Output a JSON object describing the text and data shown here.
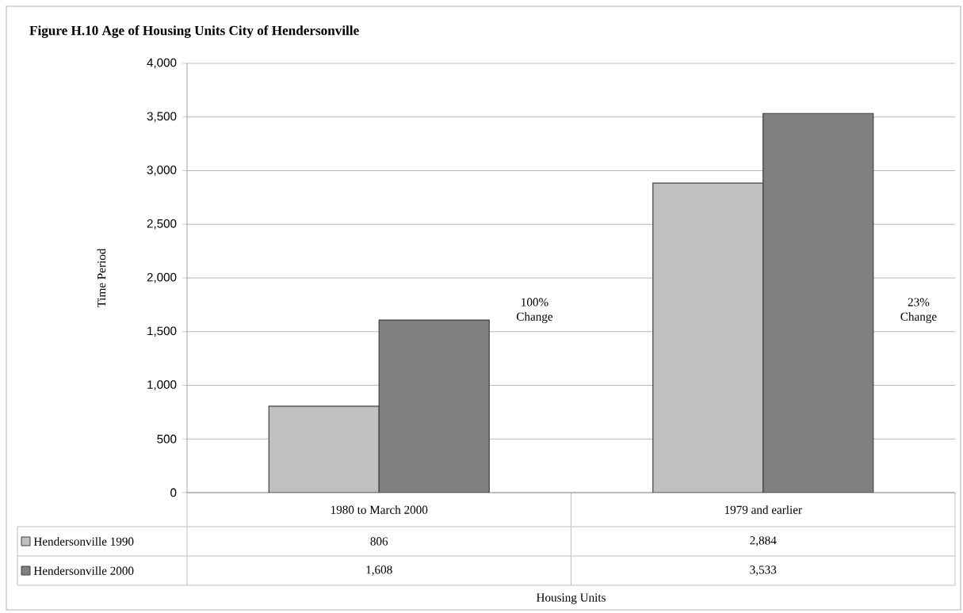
{
  "chart_data": {
    "type": "bar",
    "title": "Figure H.10 Age of Housing Units City of Hendersonville",
    "ylabel": "Time Period",
    "categories": [
      "1980 to March 2000",
      "1979 and earlier"
    ],
    "series": [
      {
        "name": "Hendersonville 1990",
        "color": "#c0c0c0",
        "values": [
          806,
          2884
        ],
        "value_labels": [
          "806",
          "2,884"
        ]
      },
      {
        "name": "Hendersonville 2000",
        "color": "#808080",
        "values": [
          1608,
          3533
        ],
        "value_labels": [
          "1,608",
          "3,533"
        ]
      }
    ],
    "annotations": [
      "100% Change",
      "23% Change",
      "Housing Units"
    ],
    "ylim": [
      0,
      4000
    ],
    "yticks": [
      {
        "value": 0,
        "label": "0"
      },
      {
        "value": 500,
        "label": "500"
      },
      {
        "value": 1000,
        "label": "1,000"
      },
      {
        "value": 1500,
        "label": "1,500"
      },
      {
        "value": 2000,
        "label": "2,000"
      },
      {
        "value": 2500,
        "label": "2,500"
      },
      {
        "value": 3000,
        "label": "3,000"
      },
      {
        "value": 3500,
        "label": "3,500"
      },
      {
        "value": 4000,
        "label": "4,000"
      }
    ],
    "grid": "y",
    "legend": "bottom"
  }
}
